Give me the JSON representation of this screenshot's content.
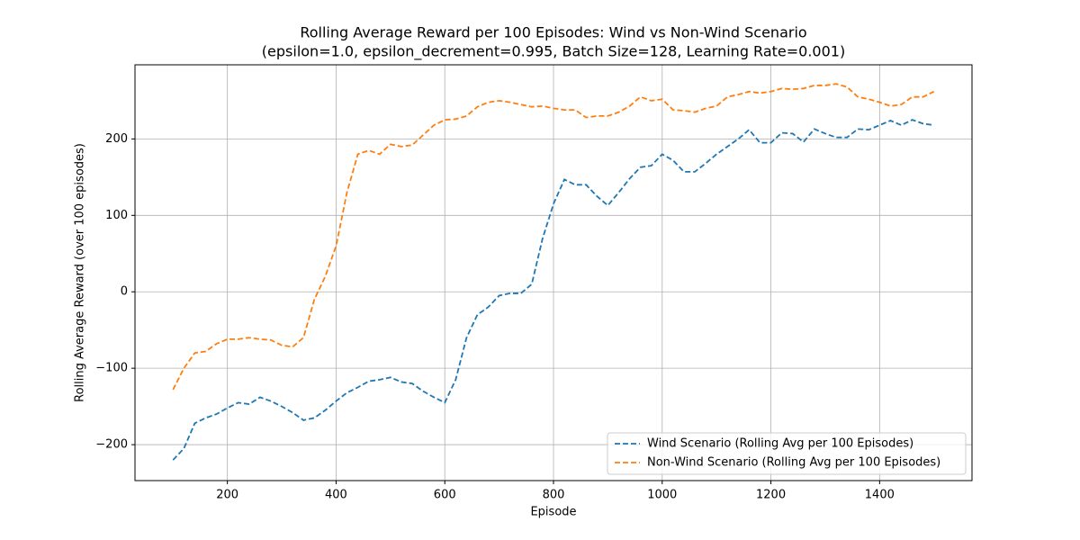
{
  "chart_data": {
    "type": "line",
    "title": "Rolling Average Reward per 100 Episodes: Wind vs Non-Wind Scenario",
    "subtitle": "(epsilon=1.0, epsilon_decrement=0.995, Batch Size=128, Learning Rate=0.001)",
    "x_label": "Episode",
    "y_label": "Rolling Average Reward (over 100 episodes)",
    "x": [
      100,
      120,
      140,
      160,
      180,
      200,
      220,
      240,
      260,
      280,
      300,
      320,
      340,
      360,
      380,
      400,
      420,
      440,
      460,
      480,
      500,
      520,
      540,
      560,
      580,
      600,
      620,
      640,
      660,
      680,
      700,
      720,
      740,
      760,
      780,
      800,
      820,
      840,
      860,
      880,
      900,
      920,
      940,
      960,
      980,
      1000,
      1020,
      1040,
      1060,
      1080,
      1100,
      1120,
      1140,
      1160,
      1180,
      1200,
      1220,
      1240,
      1260,
      1280,
      1300,
      1320,
      1340,
      1360,
      1380,
      1400,
      1420,
      1440,
      1460,
      1480,
      1500
    ],
    "series": [
      {
        "name": "Wind Scenario (Rolling Avg per 100 Episodes)",
        "color": "#1f77b4",
        "values": [
          -220,
          -205,
          -172,
          -165,
          -160,
          -152,
          -145,
          -147,
          -138,
          -143,
          -150,
          -158,
          -168,
          -165,
          -155,
          -143,
          -132,
          -125,
          -117,
          -115,
          -112,
          -118,
          -120,
          -130,
          -138,
          -145,
          -115,
          -60,
          -30,
          -20,
          -5,
          -2,
          -2,
          10,
          70,
          115,
          147,
          140,
          140,
          125,
          113,
          130,
          148,
          163,
          165,
          180,
          172,
          157,
          157,
          168,
          180,
          190,
          200,
          212,
          195,
          195,
          208,
          207,
          196,
          213,
          207,
          202,
          202,
          213,
          212,
          218,
          224,
          218,
          225,
          220,
          218
        ]
      },
      {
        "name": "Non-Wind Scenario (Rolling Avg per 100 Episodes)",
        "color": "#ff7f0e",
        "values": [
          -128,
          -100,
          -80,
          -78,
          -68,
          -62,
          -62,
          -60,
          -62,
          -63,
          -70,
          -72,
          -60,
          -10,
          20,
          60,
          130,
          180,
          185,
          180,
          193,
          190,
          192,
          205,
          218,
          225,
          226,
          230,
          242,
          248,
          250,
          248,
          245,
          242,
          243,
          240,
          238,
          238,
          228,
          230,
          230,
          235,
          243,
          255,
          250,
          252,
          238,
          237,
          235,
          240,
          243,
          255,
          258,
          262,
          260,
          262,
          266,
          265,
          266,
          270,
          270,
          272,
          268,
          255,
          252,
          248,
          243,
          245,
          255,
          255,
          262
        ]
      }
    ],
    "xlim": [
      30,
      1570
    ],
    "ylim": [
      -247,
      297
    ],
    "xticks": [
      200,
      400,
      600,
      800,
      1000,
      1200,
      1400
    ],
    "yticks": [
      {
        "value": -200,
        "label": "−200"
      },
      {
        "value": -100,
        "label": "−100"
      },
      0,
      100,
      200
    ],
    "grid": true,
    "line_style": "dashed",
    "legend_position": "lower right"
  }
}
